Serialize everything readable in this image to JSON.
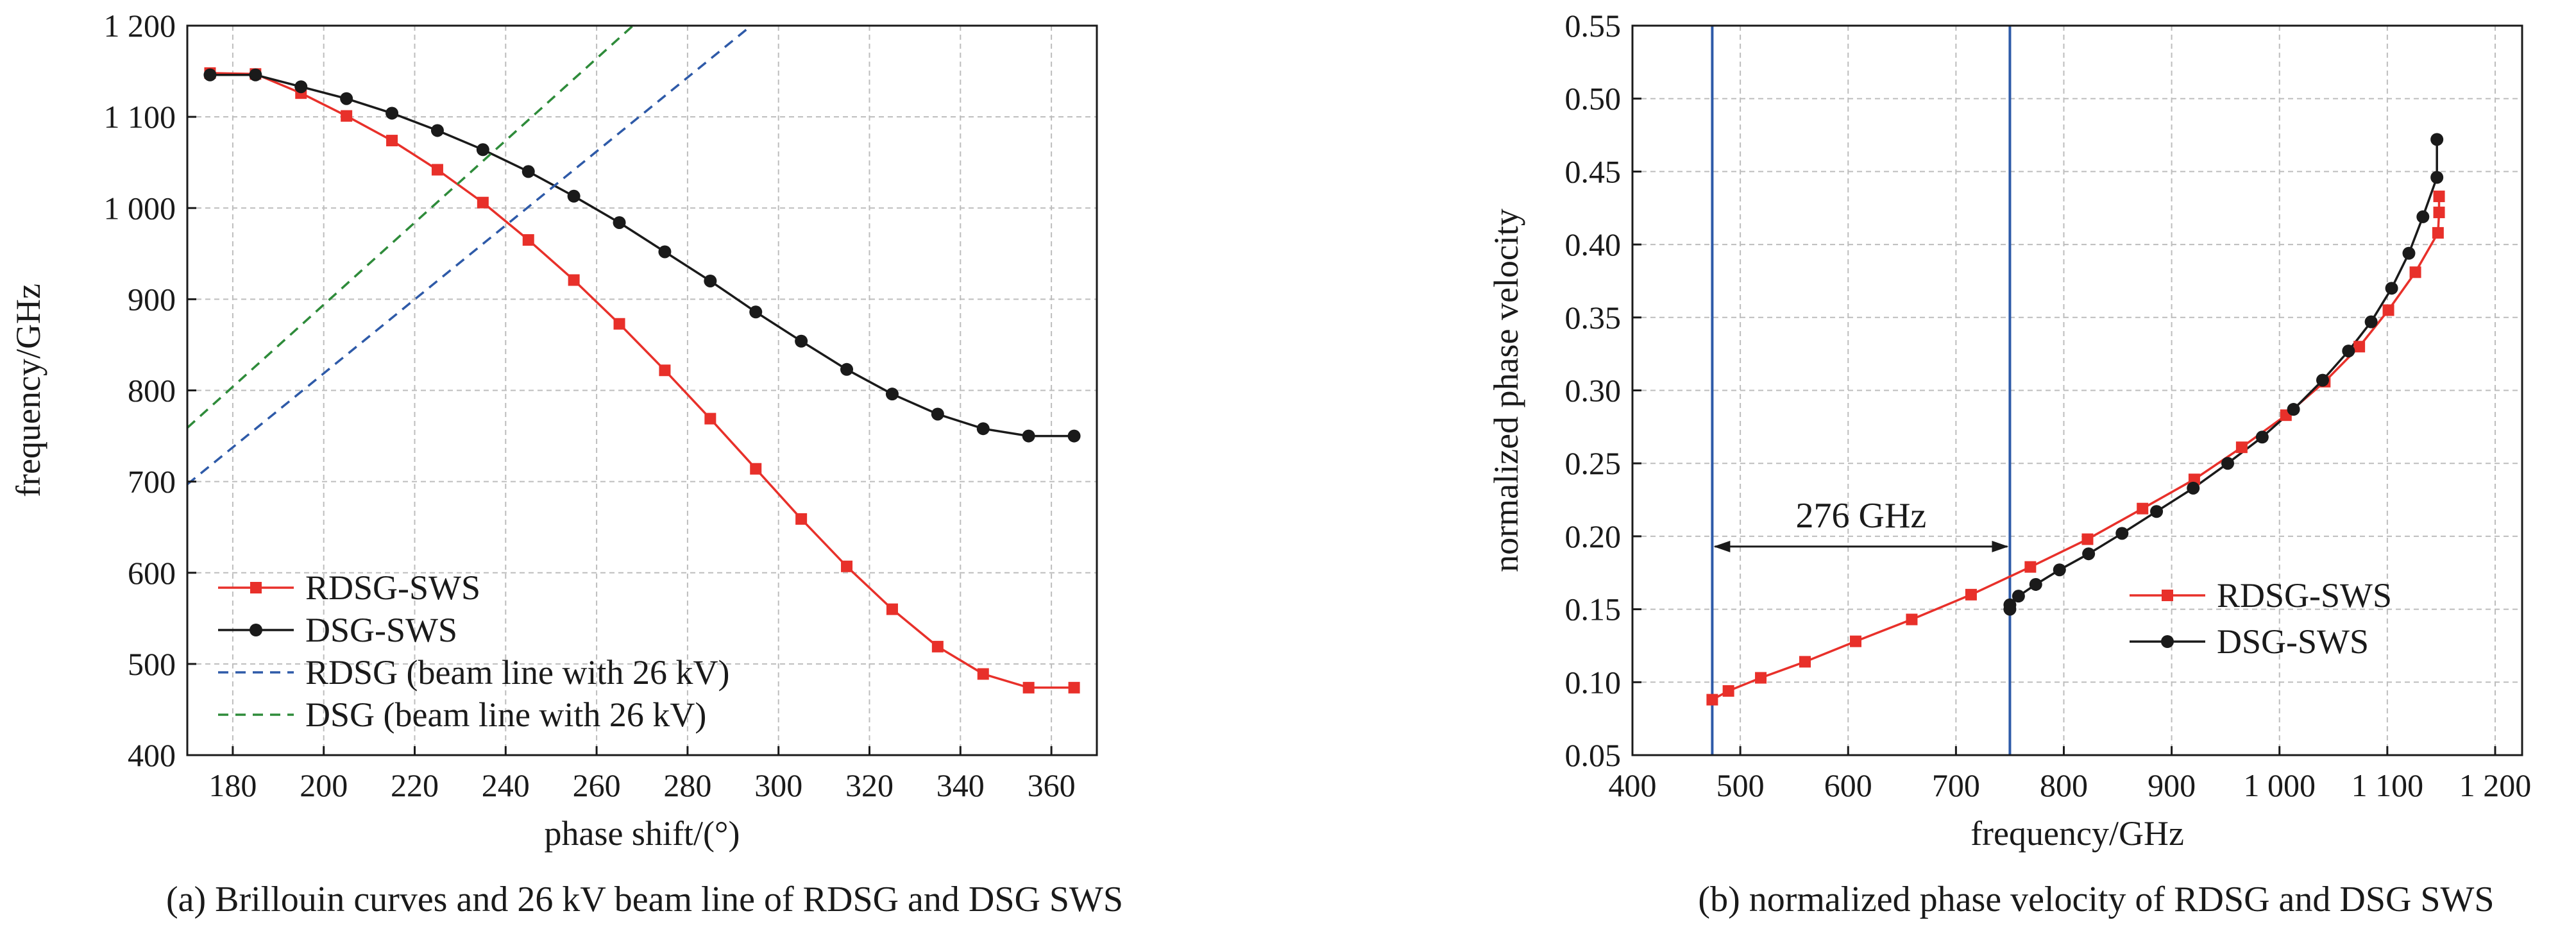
{
  "chart_data": [
    {
      "type": "line",
      "caption": "(a) Brillouin curves and 26 kV beam line of RDSG and DSG SWS",
      "xlabel": "phase shift/(°)",
      "ylabel": "frequency/GHz",
      "xlim": [
        170,
        370
      ],
      "ylim": [
        400,
        1200
      ],
      "xticks": [
        180,
        200,
        220,
        240,
        260,
        280,
        300,
        320,
        340,
        360
      ],
      "yticks": [
        400,
        500,
        600,
        700,
        800,
        900,
        1000,
        1100,
        1200
      ],
      "ytick_labels": [
        "400",
        "500",
        "600",
        "700",
        "800",
        "900",
        "1 000",
        "1 100",
        "1 200"
      ],
      "grid": true,
      "legend_position": "bottom-left",
      "series": [
        {
          "name": "RDSG-SWS",
          "color": "#e8302a",
          "style": "solid",
          "marker": "square",
          "x": [
            175,
            185,
            195,
            205,
            215,
            225,
            235,
            245,
            255,
            265,
            275,
            285,
            295,
            305,
            315,
            325,
            335,
            345,
            355,
            365
          ],
          "y": [
            1148,
            1147,
            1126,
            1101,
            1074,
            1042,
            1006,
            965,
            921,
            873,
            822,
            769,
            714,
            659,
            607,
            560,
            519,
            489,
            474,
            474
          ]
        },
        {
          "name": "DSG-SWS",
          "color": "#1a1a1a",
          "style": "solid",
          "marker": "circle",
          "x": [
            175,
            185,
            195,
            205,
            215,
            225,
            235,
            245,
            255,
            265,
            275,
            285,
            295,
            305,
            315,
            325,
            335,
            345,
            355,
            365
          ],
          "y": [
            1146,
            1146,
            1133,
            1120,
            1104,
            1085,
            1064,
            1040,
            1013,
            984,
            952,
            920,
            886,
            854,
            823,
            796,
            774,
            758,
            750,
            750
          ]
        },
        {
          "name": "RDSG (beam line with 26 kV)",
          "color": "#2e5aa8",
          "style": "dashed",
          "marker": "none",
          "x": [
            170,
            294
          ],
          "y": [
            697,
            1200
          ]
        },
        {
          "name": "DSG (beam line with 26 kV)",
          "color": "#2e8b3a",
          "style": "dashed",
          "marker": "none",
          "x": [
            170,
            268
          ],
          "y": [
            759,
            1200
          ]
        }
      ]
    },
    {
      "type": "line",
      "caption": "(b) normalized phase velocity of RDSG and DSG SWS",
      "xlabel": "frequency/GHz",
      "ylabel": "normalized phase velocity",
      "xlim": [
        400,
        1225
      ],
      "ylim": [
        0.05,
        0.55
      ],
      "xticks": [
        400,
        500,
        600,
        700,
        800,
        900,
        1000,
        1100,
        1200
      ],
      "xtick_labels": [
        "400",
        "500",
        "600",
        "700",
        "800",
        "900",
        "1 000",
        "1 100",
        "1 200"
      ],
      "yticks": [
        0.05,
        0.1,
        0.15,
        0.2,
        0.25,
        0.3,
        0.35,
        0.4,
        0.45,
        0.5,
        0.55
      ],
      "ytick_labels": [
        "0.05",
        "0.10",
        "0.15",
        "0.20",
        "0.25",
        "0.30",
        "0.35",
        "0.40",
        "0.45",
        "0.50",
        "0.55"
      ],
      "grid": true,
      "legend_position": "right",
      "vlines": [
        {
          "x": 474,
          "color": "#2e5aa8"
        },
        {
          "x": 750,
          "color": "#2e5aa8"
        }
      ],
      "annotation": {
        "text": "276 GHz",
        "x_from": 474,
        "x_to": 750,
        "y": 0.193
      },
      "series": [
        {
          "name": "RDSG-SWS",
          "color": "#e8302a",
          "style": "solid",
          "marker": "square",
          "x": [
            474,
            489,
            519,
            560,
            607,
            659,
            714,
            769,
            822,
            873,
            921,
            965,
            1006,
            1042,
            1074,
            1101,
            1126,
            1147,
            1148,
            1148
          ],
          "y": [
            0.088,
            0.094,
            0.103,
            0.114,
            0.128,
            0.143,
            0.16,
            0.179,
            0.198,
            0.219,
            0.239,
            0.261,
            0.283,
            0.306,
            0.33,
            0.355,
            0.381,
            0.408,
            0.422,
            0.433
          ]
        },
        {
          "name": "DSG-SWS",
          "color": "#1a1a1a",
          "style": "solid",
          "marker": "circle",
          "x": [
            750,
            750,
            758,
            774,
            796,
            823,
            854,
            886,
            920,
            952,
            984,
            1013,
            1040,
            1064,
            1085,
            1104,
            1120,
            1133,
            1146,
            1146
          ],
          "y": [
            0.15,
            0.153,
            0.159,
            0.167,
            0.177,
            0.188,
            0.202,
            0.217,
            0.233,
            0.25,
            0.268,
            0.287,
            0.307,
            0.327,
            0.347,
            0.37,
            0.394,
            0.419,
            0.446,
            0.472
          ]
        }
      ]
    }
  ]
}
